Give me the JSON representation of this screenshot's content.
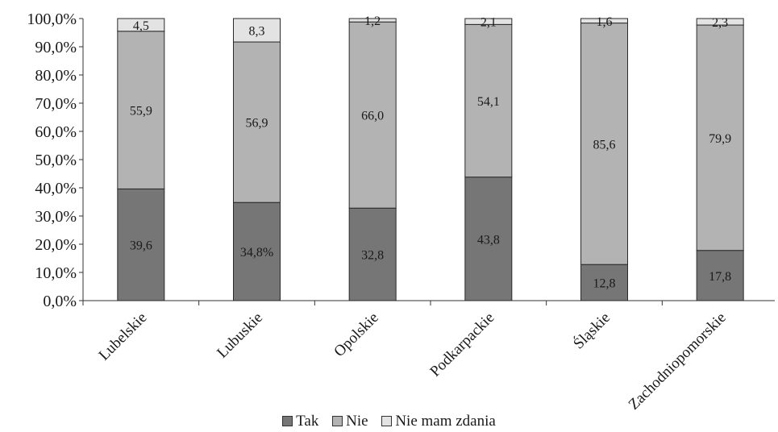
{
  "chart_data": {
    "type": "bar",
    "stacked": true,
    "categories": [
      "Lubelskie",
      "Lubuskie",
      "Opolskie",
      "Podkarpackie",
      "Śląskie",
      "Zachodniopomorskie"
    ],
    "series": [
      {
        "name": "Tak",
        "values": [
          39.6,
          34.8,
          32.8,
          43.8,
          12.8,
          17.8
        ],
        "labels": [
          "39,6",
          "34,8%",
          "32,8",
          "43,8",
          "12,8",
          "17,8"
        ],
        "color": "#767676"
      },
      {
        "name": "Nie",
        "values": [
          55.9,
          56.9,
          66.0,
          54.1,
          85.6,
          79.9
        ],
        "labels": [
          "55,9",
          "56,9",
          "66,0",
          "54,1",
          "85,6",
          "79,9"
        ],
        "color": "#b3b3b3"
      },
      {
        "name": "Nie mam zdania",
        "values": [
          4.5,
          8.3,
          1.2,
          2.1,
          1.6,
          2.3
        ],
        "labels": [
          "4,5",
          "8,3",
          "1,2",
          "2,1",
          "1,6",
          "2,3"
        ],
        "color": "#e3e3e3"
      }
    ],
    "ylim": [
      0,
      100
    ],
    "yticks": [
      "0,0%",
      "10,0%",
      "20,0%",
      "30,0%",
      "40,0%",
      "50,0%",
      "60,0%",
      "70,0%",
      "80,0%",
      "90,0%",
      "100,0%"
    ],
    "legend_position": "bottom",
    "grid": false
  }
}
